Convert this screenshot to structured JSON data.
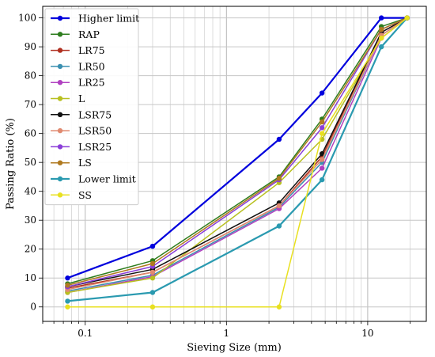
{
  "chart_data": {
    "type": "line",
    "xscale": "log",
    "xlabel": "Sieving Size (mm)",
    "ylabel": "Passing Ratio (%)",
    "xlim": [
      0.05,
      26
    ],
    "ylim": [
      -5,
      104
    ],
    "grid": true,
    "legend_position": "top-left",
    "x": [
      0.075,
      0.3,
      2.36,
      4.75,
      12.5,
      19
    ],
    "x_ticks": [
      0.1,
      1,
      10
    ],
    "x_tick_labels": [
      "0.1",
      "1",
      "10"
    ],
    "y_ticks": [
      0,
      10,
      20,
      30,
      40,
      50,
      60,
      70,
      80,
      90,
      100
    ],
    "y_tick_labels": [
      "0",
      "10",
      "20",
      "30",
      "40",
      "50",
      "60",
      "70",
      "80",
      "90",
      "100"
    ],
    "series": [
      {
        "name": "Higher limit",
        "color": "#0000dd",
        "width": 2.2,
        "values": [
          10,
          21,
          58,
          74,
          100,
          100
        ]
      },
      {
        "name": "RAP",
        "color": "#2e7d1e",
        "width": 1.5,
        "values": [
          8,
          16,
          45,
          65,
          97,
          100
        ]
      },
      {
        "name": "LR75",
        "color": "#b03020",
        "width": 1.5,
        "values": [
          6.5,
          12,
          35,
          52,
          95,
          100
        ]
      },
      {
        "name": "LR50",
        "color": "#3a8fb0",
        "width": 1.5,
        "values": [
          5.5,
          11,
          34.5,
          50,
          94,
          100
        ]
      },
      {
        "name": "LR25",
        "color": "#b040c0",
        "width": 1.5,
        "values": [
          5,
          10.5,
          34,
          48,
          93,
          100
        ]
      },
      {
        "name": "L",
        "color": "#b8c020",
        "width": 1.5,
        "values": [
          5,
          10,
          43,
          58,
          93,
          100
        ]
      },
      {
        "name": "LSR75",
        "color": "#111111",
        "width": 1.5,
        "values": [
          7,
          13,
          36,
          53,
          95,
          100
        ]
      },
      {
        "name": "LSR50",
        "color": "#e08a70",
        "width": 1.5,
        "values": [
          6,
          12,
          35,
          51,
          94,
          100
        ]
      },
      {
        "name": "LSR25",
        "color": "#8a3ed8",
        "width": 1.5,
        "values": [
          7,
          14,
          44,
          62,
          96,
          100
        ]
      },
      {
        "name": "LS",
        "color": "#b07a20",
        "width": 1.5,
        "values": [
          7.5,
          15,
          44.5,
          64,
          96,
          100
        ]
      },
      {
        "name": "Lower limit",
        "color": "#2a9ab0",
        "width": 2.2,
        "values": [
          2,
          5,
          28,
          44,
          90,
          100
        ]
      },
      {
        "name": "SS",
        "color": "#e8e020",
        "width": 1.5,
        "values": [
          0,
          0,
          0,
          60,
          93,
          100
        ]
      }
    ]
  }
}
